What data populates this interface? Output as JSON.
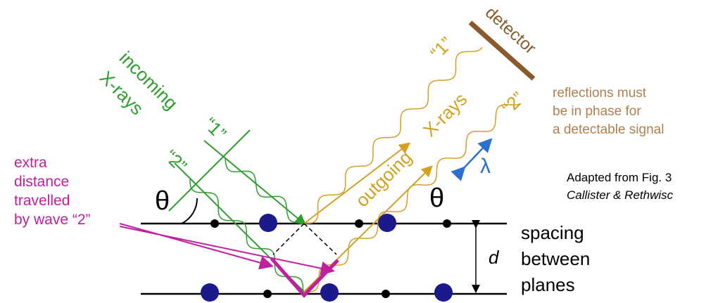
{
  "incoming": {
    "lines": [
      "incoming",
      "X-rays"
    ],
    "ray_1": "“1”",
    "ray_2": "“2”"
  },
  "outgoing": {
    "lines": [
      "outgoing",
      "X-rays"
    ],
    "ray_1": "“1”",
    "ray_2": "“2”"
  },
  "detector": "detector",
  "phase_note": [
    "reflections must",
    "be in phase for",
    "a detectable signal"
  ],
  "extra_distance": [
    "extra",
    "distance",
    "travelled",
    "by wave “2”"
  ],
  "theta_in": "θ",
  "theta_out": "θ",
  "wavelength": "λ",
  "spacing_symbol": "d",
  "spacing_label": [
    "spacing",
    "between",
    "planes"
  ],
  "credit": [
    "Adapted from Fig. 3",
    "Callister & Rethwisc"
  ]
}
